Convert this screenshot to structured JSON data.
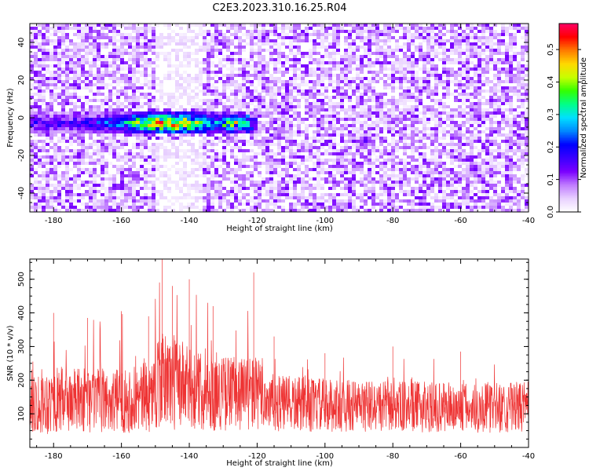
{
  "figure_title": "C2E3.2023.310.16.25.R04",
  "chart_data": [
    {
      "type": "heatmap",
      "xlabel": "Height of straight line (km)",
      "ylabel": "Frequency (Hz)",
      "xlim": [
        -187,
        -40
      ],
      "ylim": [
        -50,
        50
      ],
      "xticks": [
        -180,
        -160,
        -140,
        -120,
        -100,
        -80,
        -60,
        -40
      ],
      "yticks": [
        -40,
        -20,
        0,
        20,
        40
      ],
      "colorbar": {
        "label": "Normalized spectral amplitude",
        "range": [
          0.0,
          0.58
        ],
        "ticks": [
          "0.0",
          "0.1",
          "0.2",
          "0.3",
          "0.4",
          "0.5"
        ],
        "colormap": [
          "#ffffff",
          "#e8d0ff",
          "#c07cff",
          "#7a00ff",
          "#3a00ff",
          "#0000ff",
          "#0088ff",
          "#00e0ff",
          "#00ff88",
          "#33ff00",
          "#c8ff00",
          "#ffd800",
          "#ff7a00",
          "#ff0000",
          "#ff0066"
        ]
      },
      "features": [
        {
          "name": "signal band",
          "freq_hz": -3,
          "x_start_km": -187,
          "x_end_km": -120,
          "peak_amplitude": 0.45,
          "peak_height_km": -146
        },
        {
          "name": "spot",
          "freq_hz": -12,
          "height_km": -88,
          "amplitude": 0.15
        },
        {
          "name": "spot",
          "freq_hz": 1,
          "height_km": -55,
          "amplitude": 0.12
        },
        {
          "name": "spot",
          "freq_hz": -27,
          "height_km": -56,
          "amplitude": 0.14
        }
      ]
    },
    {
      "type": "line",
      "xlabel": "Height of straight line (km)",
      "ylabel": "SNR (10 * v/v)",
      "xlim": [
        -187,
        -40
      ],
      "ylim": [
        0,
        560
      ],
      "xticks": [
        -180,
        -160,
        -140,
        -120,
        -100,
        -80,
        -60,
        -40
      ],
      "yticks": [
        100,
        200,
        300,
        400,
        500
      ],
      "color": "#ee3333",
      "series_profile": [
        {
          "x": -187,
          "baseline": 135,
          "noise_amp": 95,
          "spike": 235
        },
        {
          "x": -180,
          "baseline": 140,
          "noise_amp": 100,
          "spike": 400
        },
        {
          "x": -170,
          "baseline": 140,
          "noise_amp": 95,
          "spike": 385
        },
        {
          "x": -160,
          "baseline": 138,
          "noise_amp": 95,
          "spike": 405
        },
        {
          "x": -152,
          "baseline": 150,
          "noise_amp": 105,
          "spike": 390
        },
        {
          "x": -148,
          "baseline": 200,
          "noise_amp": 140,
          "spike": 560
        },
        {
          "x": -145,
          "baseline": 200,
          "noise_amp": 150,
          "spike": 480
        },
        {
          "x": -140,
          "baseline": 175,
          "noise_amp": 120,
          "spike": 500
        },
        {
          "x": -133,
          "baseline": 160,
          "noise_amp": 110,
          "spike": 420
        },
        {
          "x": -121,
          "baseline": 165,
          "noise_amp": 115,
          "spike": 520
        },
        {
          "x": -115,
          "baseline": 130,
          "noise_amp": 85,
          "spike": 330
        },
        {
          "x": -100,
          "baseline": 125,
          "noise_amp": 80,
          "spike": 280
        },
        {
          "x": -80,
          "baseline": 122,
          "noise_amp": 75,
          "spike": 300
        },
        {
          "x": -60,
          "baseline": 118,
          "noise_amp": 75,
          "spike": 285
        },
        {
          "x": -40,
          "baseline": 120,
          "noise_amp": 75,
          "spike": 320
        }
      ]
    }
  ]
}
